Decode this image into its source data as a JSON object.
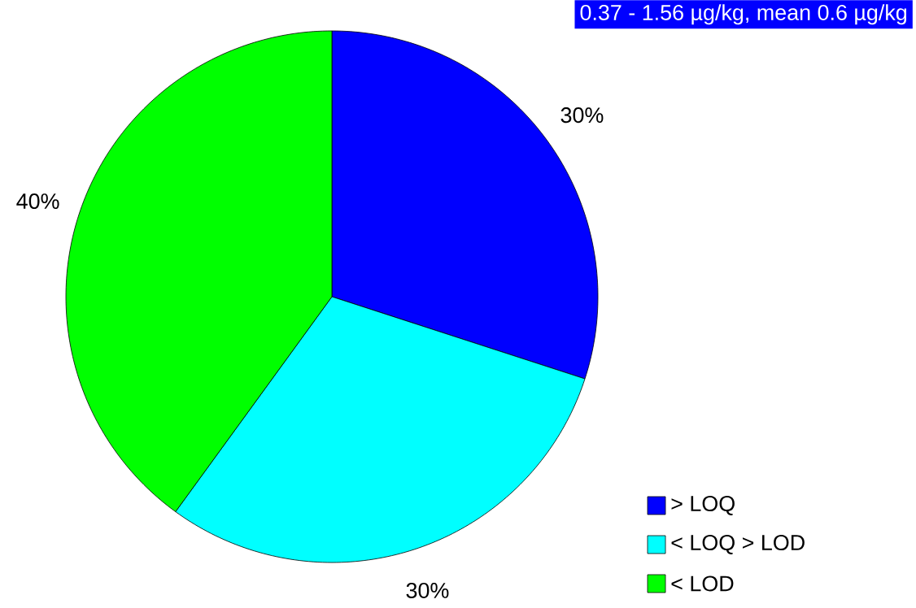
{
  "chart_data": {
    "type": "pie",
    "title": "0.37 - 1.56 µg/kg, mean 0.6 µg/kg",
    "categories": [
      "> LOQ",
      "< LOQ > LOD",
      "< LOD"
    ],
    "values": [
      30,
      30,
      40
    ],
    "colors": [
      "#0000ff",
      "#00ffff",
      "#00ff00"
    ],
    "value_labels": [
      "30%",
      "30%",
      "40%"
    ],
    "legend": "bottom right"
  }
}
